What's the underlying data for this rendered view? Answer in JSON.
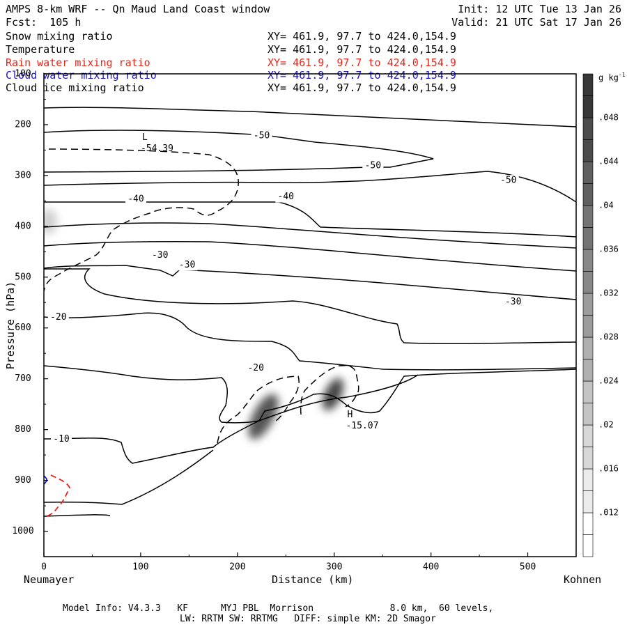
{
  "header": {
    "title": "AMPS 8-km WRF -- Qn Maud Land Coast window",
    "forecast": "Fcst:  105 h",
    "init": "Init: 12 UTC Tue 13 Jan 26",
    "valid": "Valid: 21 UTC Sat 17 Jan 26"
  },
  "legend": [
    {
      "label": "Snow mixing ratio",
      "xy": "XY= 461.9, 97.7 to 424.0,154.9",
      "color": "#000000"
    },
    {
      "label": "Temperature",
      "xy": "XY= 461.9, 97.7 to 424.0,154.9",
      "color": "#000000"
    },
    {
      "label": "Rain water mixing ratio",
      "xy": "XY= 461.9, 97.7 to 424.0,154.9",
      "color": "#e8251b"
    },
    {
      "label": "Cloud water mixing ratio",
      "xy": "XY= 461.9, 97.7 to 424.0,154.9",
      "color": "#1a14c8"
    },
    {
      "label": "Cloud ice mixing ratio",
      "xy": "XY= 461.9, 97.7 to 424.0,154.9",
      "color": "#000000"
    }
  ],
  "chart_data": {
    "type": "contour",
    "xlabel": "Distance (km)",
    "ylabel": "Pressure (hPa)",
    "xlim": [
      0,
      550
    ],
    "ylim": [
      1050,
      100
    ],
    "x_ticks": [
      0,
      100,
      200,
      300,
      400,
      500
    ],
    "y_ticks": [
      1000,
      900,
      800,
      700,
      600,
      500,
      400,
      300,
      200,
      100
    ],
    "left_endpoint": "Neumayer",
    "right_endpoint": "Kohnen",
    "temperature_contour_labels": [
      {
        "text": "-50",
        "x": 225,
        "p": 222
      },
      {
        "text": "-50",
        "x": 340,
        "p": 281
      },
      {
        "text": "-50",
        "x": 480,
        "p": 310
      },
      {
        "text": "-40",
        "x": 95,
        "p": 347
      },
      {
        "text": "-40",
        "x": 250,
        "p": 342
      },
      {
        "text": "-30",
        "x": 120,
        "p": 457
      },
      {
        "text": "-30",
        "x": 148,
        "p": 476
      },
      {
        "text": "-30",
        "x": 485,
        "p": 549
      },
      {
        "text": "-20",
        "x": 15,
        "p": 579
      },
      {
        "text": "-20",
        "x": 219,
        "p": 679
      },
      {
        "text": "-10",
        "x": 18,
        "p": 819
      }
    ],
    "extrema": [
      {
        "type": "L",
        "value": "-54.39",
        "x": 113,
        "p": 250
      },
      {
        "type": "H",
        "value": "-15.07",
        "x": 325,
        "p": 796
      }
    ],
    "colorbar": {
      "unit": "g kg",
      "unit_exponent": "-1",
      "levels": [
        ".012",
        ".016",
        ".02",
        ".024",
        ".028",
        ".032",
        ".036",
        ".04",
        ".044",
        ".048"
      ]
    },
    "model_info": {
      "line1": "Model Info: V4.3.3   KF      MYJ PBL  Morrison              8.0 km,  60 levels,",
      "line2": "LW: RRTM SW: RRTMG   DIFF: simple KM: 2D Smagor"
    }
  }
}
